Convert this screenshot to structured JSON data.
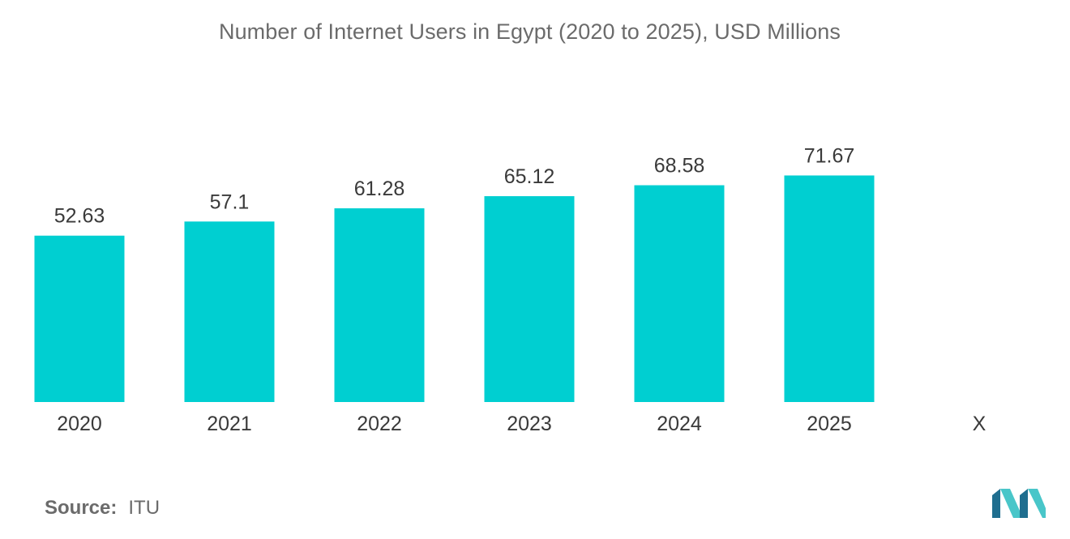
{
  "chart_data": {
    "type": "bar",
    "title": "Number of Internet Users in Egypt (2020 to 2025), USD Millions",
    "categories": [
      "2020",
      "2021",
      "2022",
      "2023",
      "2024",
      "2025",
      "X"
    ],
    "values": [
      52.63,
      57.1,
      61.28,
      65.12,
      68.58,
      71.67,
      null
    ],
    "value_labels": [
      "52.63",
      "57.1",
      "61.28",
      "65.12",
      "68.58",
      "71.67",
      ""
    ],
    "xlabel": "",
    "ylabel": "",
    "ylim": [
      0,
      76
    ],
    "grid": false,
    "legend": "none",
    "bar_color": "#00cfd1"
  },
  "source": {
    "label": "Source:",
    "value": "ITU"
  },
  "colors": {
    "bar": "#00cfd1",
    "logo_dark": "#1f6e8f",
    "logo_light": "#49c6c9"
  }
}
